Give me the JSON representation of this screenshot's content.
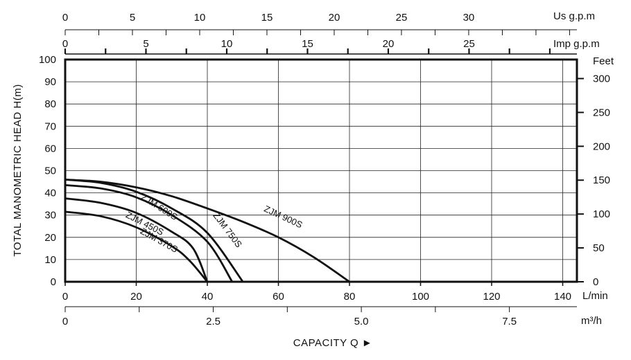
{
  "chart_data": {
    "type": "line",
    "title": "",
    "xlabel": "CAPACITY Q ►",
    "ylabel": "TOTAL MANOMETRIC HEAD H(m)",
    "xlim": [
      0,
      144
    ],
    "ylim": [
      0,
      100
    ],
    "grid": true,
    "axes": {
      "left": {
        "unit": "",
        "ticks": [
          0,
          10,
          20,
          30,
          40,
          50,
          60,
          70,
          80,
          90,
          100
        ],
        "labels": [
          "0",
          "10",
          "20",
          "30",
          "40",
          "50",
          "60",
          "70",
          "80",
          "90",
          "100"
        ]
      },
      "right": {
        "unit": "Feet",
        "ticks": [
          0,
          50,
          100,
          150,
          200,
          250,
          300
        ],
        "labels": [
          "0",
          "50",
          "100",
          "150",
          "200",
          "250",
          "300"
        ],
        "m_per_unit": 0.3048
      },
      "bottom": {
        "unit": "L/min",
        "ticks": [
          0,
          20,
          40,
          60,
          80,
          100,
          120,
          140
        ],
        "labels": [
          "0",
          "20",
          "40",
          "60",
          "80",
          "100",
          "120",
          "140"
        ]
      },
      "m3h": {
        "unit": "m³/h",
        "ticks": [
          0,
          2.5,
          5.0,
          7.5
        ],
        "labels": [
          "0",
          "2.5",
          "5.0",
          "7.5"
        ],
        "minor_step": 1.25,
        "lpm_per_unit": 16.6667
      },
      "imp": {
        "unit": "Imp g.p.m",
        "ticks": [
          0,
          5,
          10,
          15,
          20,
          25
        ],
        "labels": [
          "0",
          "5",
          "10",
          "15",
          "20",
          "25"
        ],
        "minor_step": 2.5,
        "lpm_per_unit": 4.546
      },
      "us": {
        "unit": "Us g.p.m",
        "ticks": [
          0,
          5,
          10,
          15,
          20,
          25,
          30
        ],
        "labels": [
          "0",
          "5",
          "10",
          "15",
          "20",
          "25",
          "30"
        ],
        "minor_step": 2.5,
        "lpm_per_unit": 3.785
      }
    },
    "series": [
      {
        "name": "ZJM 370S",
        "points": [
          [
            0,
            31.5
          ],
          [
            10,
            29.5
          ],
          [
            20,
            24.5
          ],
          [
            30,
            16
          ],
          [
            35,
            9.5
          ],
          [
            40,
            0
          ]
        ]
      },
      {
        "name": "ZJM 450S",
        "points": [
          [
            0,
            37.5
          ],
          [
            10,
            35.5
          ],
          [
            20,
            31
          ],
          [
            30,
            22.5
          ],
          [
            36,
            15
          ],
          [
            40,
            0
          ]
        ]
      },
      {
        "name": "ZJM 600S",
        "points": [
          [
            0,
            43.5
          ],
          [
            10,
            42
          ],
          [
            20,
            38
          ],
          [
            30,
            30
          ],
          [
            40,
            18
          ],
          [
            47,
            0
          ]
        ]
      },
      {
        "name": "ZJM 750S",
        "points": [
          [
            0,
            46
          ],
          [
            10,
            44.5
          ],
          [
            20,
            40.5
          ],
          [
            30,
            33
          ],
          [
            40,
            22
          ],
          [
            50,
            0
          ]
        ]
      },
      {
        "name": "ZJM 900S",
        "points": [
          [
            0,
            46
          ],
          [
            10,
            45
          ],
          [
            20,
            42.5
          ],
          [
            30,
            38.5
          ],
          [
            40,
            33
          ],
          [
            50,
            27
          ],
          [
            60,
            20
          ],
          [
            70,
            11
          ],
          [
            80,
            0
          ]
        ]
      }
    ],
    "annotations": [
      {
        "text": "ZJM 370S",
        "series": 0,
        "x": 26,
        "y": 17.5,
        "angle": 29
      },
      {
        "text": "ZJM 450S",
        "series": 1,
        "x": 22,
        "y": 25,
        "angle": 27
      },
      {
        "text": "ZJM 600S",
        "series": 2,
        "x": 26,
        "y": 32.5,
        "angle": 32
      },
      {
        "text": "ZJM 750S",
        "series": 3,
        "x": 45,
        "y": 22.5,
        "angle": 53
      },
      {
        "text": "ZJM 900S",
        "series": 4,
        "x": 61,
        "y": 28,
        "angle": 25
      }
    ]
  }
}
